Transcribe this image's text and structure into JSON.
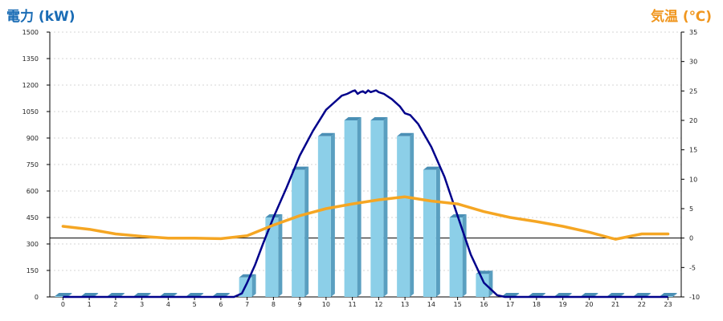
{
  "titles": {
    "left_axis": "電力 (kW)",
    "right_axis": "気温 (℃)"
  },
  "colors": {
    "left_title": "#1a6cb5",
    "right_title": "#f0961e",
    "bar_front": "#8ccfe8",
    "bar_side": "#5a9fc0",
    "bar_top": "#4a8fb5",
    "power_curve": "#00008b",
    "temperature_line": "#f5a623",
    "grid": "#c8c8c8",
    "zero_line": "#000000"
  },
  "chart_data": {
    "type": "bar",
    "categories": [
      "0",
      "1",
      "2",
      "3",
      "4",
      "5",
      "6",
      "7",
      "8",
      "9",
      "10",
      "11",
      "12",
      "13",
      "14",
      "15",
      "16",
      "17",
      "18",
      "19",
      "20",
      "21",
      "22",
      "23"
    ],
    "y_left": {
      "label": "電力 (kW)",
      "lim": [
        0,
        1500
      ],
      "ticks": [
        0,
        150,
        300,
        450,
        600,
        750,
        900,
        1050,
        1200,
        1350,
        1500
      ]
    },
    "y_right": {
      "label": "気温 (℃)",
      "lim": [
        -10,
        35
      ],
      "ticks": [
        -10,
        -5,
        0,
        5,
        10,
        15,
        20,
        25,
        30,
        35
      ]
    },
    "grid": true,
    "series": [
      {
        "kind": "bar",
        "axis": "left",
        "values": [
          0,
          0,
          0,
          0,
          0,
          0,
          0,
          110,
          450,
          720,
          910,
          1000,
          1000,
          910,
          720,
          450,
          130,
          0,
          0,
          0,
          0,
          0,
          0,
          0
        ]
      },
      {
        "kind": "line",
        "axis": "left",
        "x": [
          0,
          6.5,
          6.8,
          7,
          7.3,
          7.6,
          8,
          8.5,
          9,
          9.5,
          10,
          10.3,
          10.6,
          10.8,
          11,
          11.1,
          11.2,
          11.3,
          11.4,
          11.5,
          11.6,
          11.7,
          11.8,
          11.9,
          12,
          12.2,
          12.5,
          12.8,
          13,
          13.2,
          13.5,
          14,
          14.5,
          15,
          15.5,
          16,
          16.5,
          16.8,
          17,
          23
        ],
        "values": [
          0,
          0,
          20,
          80,
          180,
          300,
          450,
          620,
          800,
          940,
          1060,
          1100,
          1140,
          1150,
          1165,
          1170,
          1150,
          1160,
          1165,
          1155,
          1170,
          1160,
          1165,
          1170,
          1160,
          1150,
          1120,
          1080,
          1040,
          1030,
          980,
          850,
          680,
          460,
          240,
          80,
          10,
          0,
          0,
          0
        ]
      },
      {
        "kind": "line",
        "axis": "right",
        "values": [
          2.0,
          1.5,
          0.7,
          0.3,
          0,
          0,
          -0.1,
          0.4,
          2.2,
          3.8,
          5.0,
          5.8,
          6.5,
          7.0,
          6.3,
          5.8,
          4.5,
          3.5,
          2.8,
          2.0,
          1.0,
          -0.2,
          0.7,
          0.7
        ]
      }
    ]
  }
}
